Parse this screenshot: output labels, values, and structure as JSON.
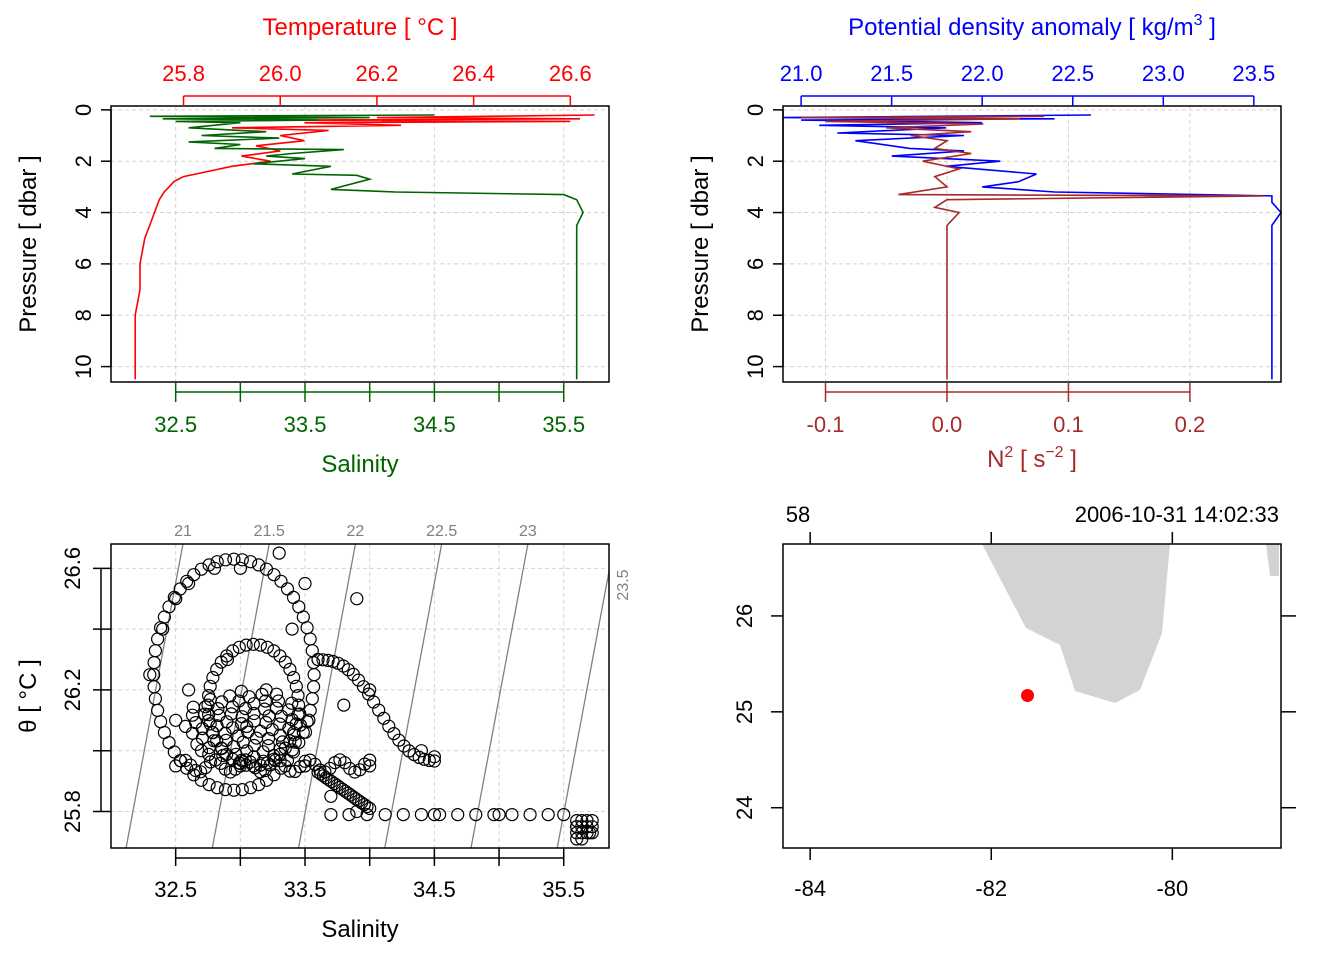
{
  "colors": {
    "temperature": "#ff0000",
    "salinity": "#006400",
    "density": "#0000ff",
    "n2": "#a52a2a",
    "axis": "#000000",
    "grid": "#d3d3d3",
    "land": "#d3d3d3",
    "station": "#ff0000",
    "isopycnal": "#808080"
  },
  "chart_data": [
    {
      "type": "line",
      "panel": "temperature-salinity-profile",
      "top_axis_title": "Temperature [ °C ]",
      "top_ticks": [
        "25.8",
        "26.0",
        "26.2",
        "26.4",
        "26.6"
      ],
      "bottom_axis_title": "Salinity",
      "bottom_ticks": [
        "32.5",
        "33.5",
        "34.5",
        "35.5"
      ],
      "ylabel": "Pressure [ dbar ]",
      "y_ticks": [
        "0",
        "2",
        "4",
        "6",
        "8",
        "10"
      ],
      "xlim_temperature": [
        25.65,
        26.68
      ],
      "xlim_salinity": [
        32.0,
        35.85
      ],
      "ylim": [
        10.6,
        -0.15
      ],
      "grid": true,
      "series": [
        {
          "name": "Temperature",
          "x_field": "temperature",
          "points": [
            [
              26.65,
              0.2
            ],
            [
              26.2,
              0.3
            ],
            [
              26.62,
              0.35
            ],
            [
              26.0,
              0.4
            ],
            [
              26.6,
              0.45
            ],
            [
              26.05,
              0.5
            ],
            [
              26.25,
              0.6
            ],
            [
              25.9,
              0.7
            ],
            [
              26.1,
              0.8
            ],
            [
              26.0,
              1.0
            ],
            [
              26.05,
              1.2
            ],
            [
              25.95,
              1.4
            ],
            [
              26.0,
              1.6
            ],
            [
              25.92,
              1.8
            ],
            [
              25.98,
              2.0
            ],
            [
              25.9,
              2.2
            ],
            [
              25.85,
              2.4
            ],
            [
              25.8,
              2.6
            ],
            [
              25.78,
              2.8
            ],
            [
              25.77,
              3.0
            ],
            [
              25.76,
              3.2
            ],
            [
              25.75,
              3.5
            ],
            [
              25.74,
              4.0
            ],
            [
              25.73,
              4.5
            ],
            [
              25.72,
              5.0
            ],
            [
              25.71,
              6.0
            ],
            [
              25.71,
              7.0
            ],
            [
              25.7,
              8.0
            ],
            [
              25.7,
              9.0
            ],
            [
              25.7,
              10.5
            ]
          ]
        },
        {
          "name": "Salinity",
          "x_field": "salinity",
          "points": [
            [
              34.5,
              0.2
            ],
            [
              32.3,
              0.25
            ],
            [
              34.0,
              0.3
            ],
            [
              32.4,
              0.35
            ],
            [
              33.6,
              0.4
            ],
            [
              32.5,
              0.45
            ],
            [
              33.0,
              0.5
            ],
            [
              32.6,
              0.7
            ],
            [
              33.2,
              0.85
            ],
            [
              32.7,
              1.0
            ],
            [
              33.3,
              1.1
            ],
            [
              32.6,
              1.25
            ],
            [
              33.0,
              1.35
            ],
            [
              32.8,
              1.5
            ],
            [
              33.8,
              1.55
            ],
            [
              33.4,
              1.7
            ],
            [
              33.2,
              1.8
            ],
            [
              33.5,
              1.9
            ],
            [
              33.1,
              2.1
            ],
            [
              33.7,
              2.2
            ],
            [
              33.4,
              2.5
            ],
            [
              33.9,
              2.55
            ],
            [
              34.0,
              2.7
            ],
            [
              33.7,
              3.1
            ],
            [
              34.2,
              3.2
            ],
            [
              35.5,
              3.3
            ],
            [
              35.6,
              3.5
            ],
            [
              35.65,
              4.0
            ],
            [
              35.6,
              4.5
            ],
            [
              35.6,
              6.0
            ],
            [
              35.6,
              8.0
            ],
            [
              35.6,
              10.5
            ]
          ]
        }
      ]
    },
    {
      "type": "line",
      "panel": "density-n2-profile",
      "top_axis_title": "Potential density anomaly [ kg/m",
      "top_axis_title_sup": "3",
      "top_axis_title_end": " ]",
      "top_ticks": [
        "21.0",
        "21.5",
        "22.0",
        "22.5",
        "23.0",
        "23.5"
      ],
      "bottom_axis_title": "N",
      "bottom_axis_title_sup1": "2",
      "bottom_axis_title_mid": " [ s",
      "bottom_axis_title_sup2": "−2",
      "bottom_axis_title_end": " ]",
      "bottom_ticks": [
        "-0.1",
        "0.0",
        "0.1",
        "0.2"
      ],
      "ylabel": "Pressure [ dbar ]",
      "y_ticks": [
        "0",
        "2",
        "4",
        "6",
        "8",
        "10"
      ],
      "xlim_density": [
        20.9,
        23.65
      ],
      "xlim_n2": [
        -0.135,
        0.275
      ],
      "ylim": [
        10.6,
        -0.15
      ],
      "grid": true,
      "series": [
        {
          "name": "Potential density anomaly",
          "x_field": "density",
          "points": [
            [
              22.6,
              0.2
            ],
            [
              20.9,
              0.3
            ],
            [
              22.4,
              0.35
            ],
            [
              21.0,
              0.4
            ],
            [
              22.0,
              0.5
            ],
            [
              21.1,
              0.6
            ],
            [
              21.8,
              0.7
            ],
            [
              21.2,
              0.9
            ],
            [
              21.9,
              1.0
            ],
            [
              21.3,
              1.2
            ],
            [
              21.6,
              1.5
            ],
            [
              21.9,
              1.6
            ],
            [
              21.5,
              1.8
            ],
            [
              22.1,
              2.0
            ],
            [
              21.8,
              2.2
            ],
            [
              22.3,
              2.5
            ],
            [
              22.2,
              2.8
            ],
            [
              22.0,
              3.0
            ],
            [
              22.4,
              3.2
            ],
            [
              23.6,
              3.35
            ],
            [
              23.6,
              3.6
            ],
            [
              23.65,
              4.0
            ],
            [
              23.6,
              4.5
            ],
            [
              23.6,
              6.0
            ],
            [
              23.6,
              8.0
            ],
            [
              23.6,
              10.5
            ]
          ]
        },
        {
          "name": "N2",
          "x_field": "n2",
          "points": [
            [
              0.08,
              0.25
            ],
            [
              -0.12,
              0.3
            ],
            [
              0.06,
              0.35
            ],
            [
              -0.1,
              0.45
            ],
            [
              0.03,
              0.55
            ],
            [
              -0.05,
              0.7
            ],
            [
              0.02,
              0.85
            ],
            [
              -0.03,
              1.0
            ],
            [
              0.0,
              1.2
            ],
            [
              -0.01,
              1.5
            ],
            [
              0.02,
              1.7
            ],
            [
              -0.02,
              2.0
            ],
            [
              0.01,
              2.3
            ],
            [
              -0.01,
              2.6
            ],
            [
              0.0,
              3.0
            ],
            [
              -0.04,
              3.3
            ],
            [
              0.26,
              3.35
            ],
            [
              0.0,
              3.5
            ],
            [
              -0.01,
              3.8
            ],
            [
              0.01,
              4.0
            ],
            [
              0.0,
              4.5
            ],
            [
              0.0,
              6.0
            ],
            [
              0.0,
              8.0
            ],
            [
              0.0,
              10.5
            ]
          ]
        }
      ]
    },
    {
      "type": "scatter",
      "panel": "ts-diagram",
      "xlabel": "Salinity",
      "ylabel": "θ [ °C ]",
      "x_ticks": [
        "32.5",
        "33.5",
        "34.5",
        "35.5"
      ],
      "y_ticks": [
        "25.8",
        "26.2",
        "26.6"
      ],
      "xlim": [
        32.0,
        35.85
      ],
      "ylim": [
        25.68,
        26.68
      ],
      "grid": true,
      "isopycnal_labels": [
        "21",
        "21.5",
        "22",
        "22.5",
        "23",
        "23.5"
      ],
      "points": [
        [
          32.3,
          26.25
        ],
        [
          32.4,
          26.4
        ],
        [
          32.5,
          26.5
        ],
        [
          32.6,
          26.55
        ],
        [
          32.8,
          26.6
        ],
        [
          33.0,
          26.6
        ],
        [
          33.3,
          26.65
        ],
        [
          33.5,
          26.55
        ],
        [
          33.9,
          26.5
        ],
        [
          33.6,
          26.3
        ],
        [
          34.0,
          26.2
        ],
        [
          34.4,
          26.0
        ],
        [
          34.5,
          25.98
        ],
        [
          32.5,
          26.1
        ],
        [
          32.7,
          26.0
        ],
        [
          33.0,
          25.95
        ],
        [
          33.5,
          25.95
        ],
        [
          34.0,
          25.95
        ],
        [
          33.7,
          25.85
        ],
        [
          33.9,
          25.8
        ],
        [
          34.5,
          25.79
        ],
        [
          35.0,
          25.79
        ],
        [
          35.5,
          25.79
        ],
        [
          35.6,
          25.75
        ],
        [
          35.7,
          25.73
        ],
        [
          32.6,
          26.2
        ],
        [
          33.2,
          26.2
        ],
        [
          33.8,
          26.15
        ],
        [
          32.9,
          26.3
        ],
        [
          33.4,
          26.4
        ]
      ]
    },
    {
      "type": "map",
      "panel": "station-map",
      "top_left_label": "58",
      "top_right_label": "2006-10-31 14:02:33",
      "x_ticks": [
        "-84",
        "-82",
        "-80"
      ],
      "y_ticks": [
        "24",
        "25",
        "26"
      ],
      "xlim": [
        -84.3,
        -78.8
      ],
      "ylim": [
        23.58,
        26.75
      ],
      "station": {
        "lon": -81.6,
        "lat": 25.17
      }
    }
  ]
}
